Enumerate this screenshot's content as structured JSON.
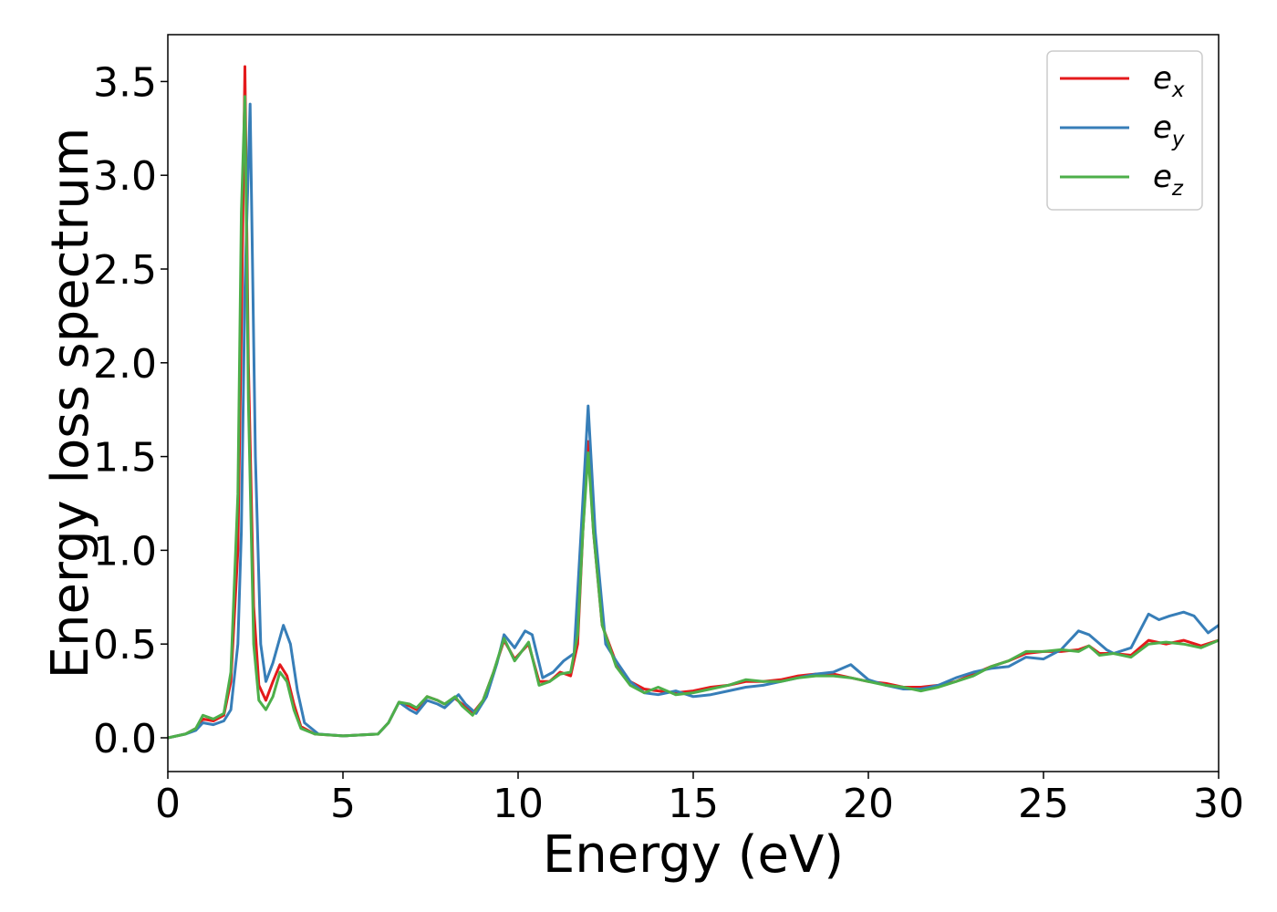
{
  "chart_data": {
    "type": "line",
    "title": "",
    "xlabel": "Energy (eV)",
    "ylabel": "Energy loss spectrum",
    "xlim": [
      0,
      30
    ],
    "ylim": [
      -0.18,
      3.75
    ],
    "xticks": [
      0,
      5,
      10,
      15,
      20,
      25,
      30
    ],
    "xtick_labels": [
      "0",
      "5",
      "10",
      "15",
      "20",
      "25",
      "30"
    ],
    "yticks": [
      0.0,
      0.5,
      1.0,
      1.5,
      2.0,
      2.5,
      3.0,
      3.5
    ],
    "ytick_labels": [
      "0.0",
      "0.5",
      "1.0",
      "1.5",
      "2.0",
      "2.5",
      "3.0",
      "3.5"
    ],
    "grid": false,
    "legend_position": "top-right",
    "series": [
      {
        "name": "e_x",
        "legend_base": "e",
        "legend_sub": "x",
        "color": "#e41a1c",
        "points": [
          [
            0,
            0
          ],
          [
            0.5,
            0.02
          ],
          [
            0.8,
            0.05
          ],
          [
            1.0,
            0.1
          ],
          [
            1.3,
            0.09
          ],
          [
            1.6,
            0.12
          ],
          [
            1.8,
            0.3
          ],
          [
            2.0,
            1.0
          ],
          [
            2.1,
            2.2
          ],
          [
            2.2,
            3.58
          ],
          [
            2.3,
            2.0
          ],
          [
            2.45,
            0.7
          ],
          [
            2.6,
            0.28
          ],
          [
            2.8,
            0.2
          ],
          [
            3.0,
            0.3
          ],
          [
            3.2,
            0.39
          ],
          [
            3.4,
            0.33
          ],
          [
            3.6,
            0.18
          ],
          [
            3.8,
            0.06
          ],
          [
            4.2,
            0.02
          ],
          [
            5,
            0.01
          ],
          [
            6,
            0.02
          ],
          [
            6.3,
            0.08
          ],
          [
            6.6,
            0.19
          ],
          [
            6.9,
            0.17
          ],
          [
            7.1,
            0.15
          ],
          [
            7.4,
            0.22
          ],
          [
            7.7,
            0.2
          ],
          [
            7.9,
            0.18
          ],
          [
            8.2,
            0.21
          ],
          [
            8.4,
            0.18
          ],
          [
            8.7,
            0.13
          ],
          [
            9.0,
            0.2
          ],
          [
            9.3,
            0.35
          ],
          [
            9.6,
            0.52
          ],
          [
            9.9,
            0.42
          ],
          [
            10.3,
            0.5
          ],
          [
            10.6,
            0.3
          ],
          [
            10.9,
            0.3
          ],
          [
            11.2,
            0.35
          ],
          [
            11.5,
            0.33
          ],
          [
            11.7,
            0.5
          ],
          [
            11.85,
            1.1
          ],
          [
            12.0,
            1.58
          ],
          [
            12.15,
            1.1
          ],
          [
            12.4,
            0.6
          ],
          [
            12.8,
            0.4
          ],
          [
            13.2,
            0.3
          ],
          [
            13.6,
            0.26
          ],
          [
            14,
            0.25
          ],
          [
            14.5,
            0.24
          ],
          [
            15,
            0.25
          ],
          [
            15.5,
            0.27
          ],
          [
            16,
            0.28
          ],
          [
            16.5,
            0.3
          ],
          [
            17,
            0.3
          ],
          [
            17.5,
            0.31
          ],
          [
            18,
            0.33
          ],
          [
            18.5,
            0.34
          ],
          [
            19,
            0.34
          ],
          [
            19.5,
            0.32
          ],
          [
            20,
            0.3
          ],
          [
            20.5,
            0.29
          ],
          [
            21,
            0.27
          ],
          [
            21.5,
            0.27
          ],
          [
            22,
            0.28
          ],
          [
            22.5,
            0.3
          ],
          [
            23,
            0.34
          ],
          [
            23.5,
            0.38
          ],
          [
            24,
            0.41
          ],
          [
            24.5,
            0.45
          ],
          [
            25,
            0.46
          ],
          [
            25.5,
            0.46
          ],
          [
            26,
            0.47
          ],
          [
            26.3,
            0.49
          ],
          [
            26.6,
            0.45
          ],
          [
            27,
            0.45
          ],
          [
            27.5,
            0.44
          ],
          [
            28,
            0.52
          ],
          [
            28.5,
            0.5
          ],
          [
            29,
            0.52
          ],
          [
            29.5,
            0.49
          ],
          [
            30,
            0.52
          ]
        ]
      },
      {
        "name": "e_y",
        "legend_base": "e",
        "legend_sub": "y",
        "color": "#377eb8",
        "points": [
          [
            0,
            0
          ],
          [
            0.5,
            0.02
          ],
          [
            0.8,
            0.04
          ],
          [
            1.0,
            0.08
          ],
          [
            1.3,
            0.07
          ],
          [
            1.6,
            0.09
          ],
          [
            1.8,
            0.15
          ],
          [
            2.0,
            0.5
          ],
          [
            2.1,
            1.1
          ],
          [
            2.2,
            2.4
          ],
          [
            2.35,
            3.38
          ],
          [
            2.5,
            1.5
          ],
          [
            2.65,
            0.5
          ],
          [
            2.8,
            0.3
          ],
          [
            3.0,
            0.4
          ],
          [
            3.3,
            0.6
          ],
          [
            3.5,
            0.5
          ],
          [
            3.7,
            0.25
          ],
          [
            3.9,
            0.08
          ],
          [
            4.3,
            0.02
          ],
          [
            5,
            0.01
          ],
          [
            6,
            0.02
          ],
          [
            6.3,
            0.08
          ],
          [
            6.6,
            0.19
          ],
          [
            6.9,
            0.15
          ],
          [
            7.1,
            0.13
          ],
          [
            7.4,
            0.2
          ],
          [
            7.7,
            0.18
          ],
          [
            7.9,
            0.16
          ],
          [
            8.3,
            0.23
          ],
          [
            8.5,
            0.18
          ],
          [
            8.8,
            0.13
          ],
          [
            9.1,
            0.22
          ],
          [
            9.4,
            0.4
          ],
          [
            9.6,
            0.55
          ],
          [
            9.9,
            0.48
          ],
          [
            10.2,
            0.57
          ],
          [
            10.4,
            0.55
          ],
          [
            10.7,
            0.32
          ],
          [
            11.0,
            0.35
          ],
          [
            11.3,
            0.41
          ],
          [
            11.6,
            0.45
          ],
          [
            11.8,
            1.1
          ],
          [
            12.0,
            1.77
          ],
          [
            12.2,
            1.1
          ],
          [
            12.5,
            0.5
          ],
          [
            12.8,
            0.41
          ],
          [
            13.2,
            0.3
          ],
          [
            13.6,
            0.24
          ],
          [
            14,
            0.23
          ],
          [
            14.5,
            0.25
          ],
          [
            15,
            0.22
          ],
          [
            15.5,
            0.23
          ],
          [
            16,
            0.25
          ],
          [
            16.5,
            0.27
          ],
          [
            17,
            0.28
          ],
          [
            17.5,
            0.3
          ],
          [
            18,
            0.32
          ],
          [
            18.5,
            0.34
          ],
          [
            19,
            0.35
          ],
          [
            19.5,
            0.39
          ],
          [
            20,
            0.31
          ],
          [
            20.5,
            0.28
          ],
          [
            21,
            0.26
          ],
          [
            21.5,
            0.26
          ],
          [
            22,
            0.28
          ],
          [
            22.5,
            0.32
          ],
          [
            23,
            0.35
          ],
          [
            23.5,
            0.37
          ],
          [
            24,
            0.38
          ],
          [
            24.5,
            0.43
          ],
          [
            25,
            0.42
          ],
          [
            25.5,
            0.47
          ],
          [
            26,
            0.57
          ],
          [
            26.3,
            0.55
          ],
          [
            26.8,
            0.47
          ],
          [
            27,
            0.45
          ],
          [
            27.5,
            0.48
          ],
          [
            28,
            0.66
          ],
          [
            28.3,
            0.63
          ],
          [
            28.6,
            0.65
          ],
          [
            29,
            0.67
          ],
          [
            29.3,
            0.65
          ],
          [
            29.7,
            0.56
          ],
          [
            30,
            0.6
          ]
        ]
      },
      {
        "name": "e_z",
        "legend_base": "e",
        "legend_sub": "z",
        "color": "#4daf4a",
        "points": [
          [
            0,
            0
          ],
          [
            0.5,
            0.02
          ],
          [
            0.8,
            0.05
          ],
          [
            1.0,
            0.12
          ],
          [
            1.3,
            0.1
          ],
          [
            1.6,
            0.13
          ],
          [
            1.8,
            0.35
          ],
          [
            2.0,
            1.3
          ],
          [
            2.1,
            2.8
          ],
          [
            2.2,
            3.42
          ],
          [
            2.3,
            1.8
          ],
          [
            2.45,
            0.5
          ],
          [
            2.6,
            0.2
          ],
          [
            2.8,
            0.15
          ],
          [
            3.0,
            0.22
          ],
          [
            3.2,
            0.35
          ],
          [
            3.4,
            0.3
          ],
          [
            3.6,
            0.15
          ],
          [
            3.8,
            0.05
          ],
          [
            4.2,
            0.02
          ],
          [
            5,
            0.01
          ],
          [
            6,
            0.02
          ],
          [
            6.3,
            0.08
          ],
          [
            6.6,
            0.19
          ],
          [
            6.9,
            0.18
          ],
          [
            7.1,
            0.16
          ],
          [
            7.4,
            0.22
          ],
          [
            7.7,
            0.2
          ],
          [
            7.9,
            0.18
          ],
          [
            8.2,
            0.22
          ],
          [
            8.4,
            0.17
          ],
          [
            8.7,
            0.12
          ],
          [
            9.0,
            0.2
          ],
          [
            9.3,
            0.35
          ],
          [
            9.6,
            0.53
          ],
          [
            9.9,
            0.41
          ],
          [
            10.3,
            0.51
          ],
          [
            10.6,
            0.28
          ],
          [
            10.9,
            0.3
          ],
          [
            11.2,
            0.34
          ],
          [
            11.5,
            0.35
          ],
          [
            11.7,
            0.55
          ],
          [
            11.85,
            1.1
          ],
          [
            12.0,
            1.52
          ],
          [
            12.15,
            1.1
          ],
          [
            12.4,
            0.6
          ],
          [
            12.8,
            0.38
          ],
          [
            13.2,
            0.28
          ],
          [
            13.6,
            0.24
          ],
          [
            14,
            0.27
          ],
          [
            14.5,
            0.23
          ],
          [
            15,
            0.24
          ],
          [
            15.5,
            0.26
          ],
          [
            16,
            0.28
          ],
          [
            16.5,
            0.31
          ],
          [
            17,
            0.3
          ],
          [
            17.5,
            0.3
          ],
          [
            18,
            0.32
          ],
          [
            18.5,
            0.33
          ],
          [
            19,
            0.33
          ],
          [
            19.5,
            0.32
          ],
          [
            20,
            0.3
          ],
          [
            20.5,
            0.28
          ],
          [
            21,
            0.27
          ],
          [
            21.5,
            0.25
          ],
          [
            22,
            0.27
          ],
          [
            22.5,
            0.3
          ],
          [
            23,
            0.33
          ],
          [
            23.5,
            0.38
          ],
          [
            24,
            0.41
          ],
          [
            24.5,
            0.46
          ],
          [
            25,
            0.46
          ],
          [
            25.5,
            0.47
          ],
          [
            26,
            0.46
          ],
          [
            26.3,
            0.49
          ],
          [
            26.6,
            0.44
          ],
          [
            27,
            0.45
          ],
          [
            27.5,
            0.43
          ],
          [
            28,
            0.5
          ],
          [
            28.5,
            0.51
          ],
          [
            29,
            0.5
          ],
          [
            29.5,
            0.48
          ],
          [
            30,
            0.52
          ]
        ]
      }
    ]
  }
}
